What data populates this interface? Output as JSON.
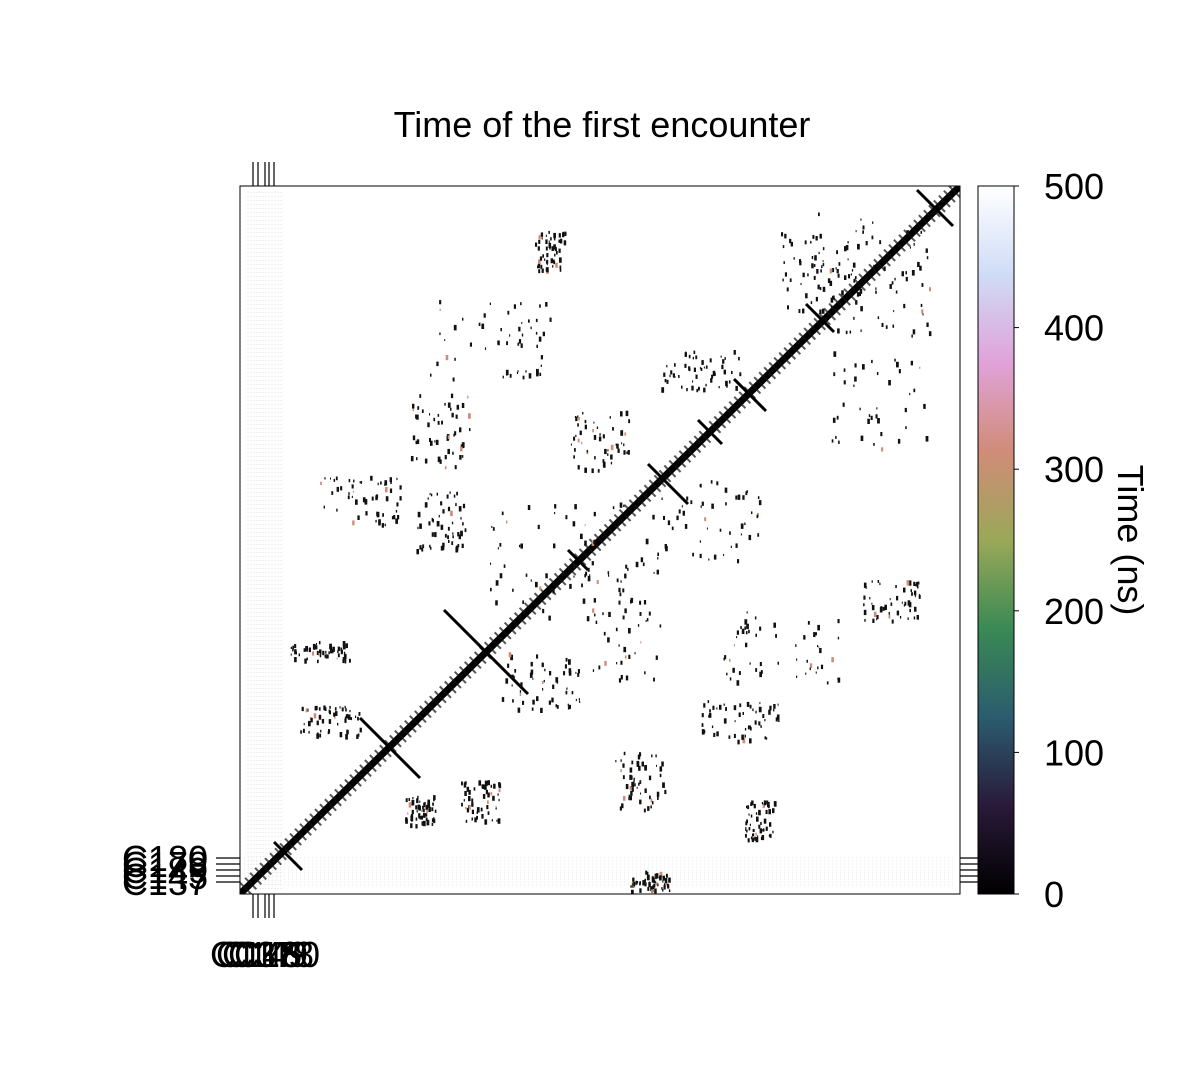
{
  "chart_data": {
    "type": "heatmap",
    "title": "Time of the first encounter",
    "xlabel": "",
    "ylabel": "",
    "description_values": {
      "diagonal": "contacts along the main diagonal occur at time ~0 ns",
      "off_diagonal": "scattered contacts mostly near 0 ns, a few at ~300-400 ns"
    },
    "x_tick_labels": [
      "C137",
      "C145",
      "C149",
      "C178",
      "C180"
    ],
    "y_tick_labels": [
      "C137",
      "C145",
      "C149",
      "C178",
      "C180"
    ],
    "colorbar": {
      "label": "Time (ns)",
      "range": [
        0,
        500
      ],
      "ticks": [
        0,
        100,
        200,
        300,
        400,
        500
      ],
      "colors": [
        "#000000",
        "#2a1a3a",
        "#2b5c6e",
        "#3a8a55",
        "#9aa858",
        "#d08c78",
        "#e0a2d8",
        "#cfdcf6",
        "#ffffff"
      ]
    },
    "grid": false,
    "legend": "colorbar-right"
  }
}
